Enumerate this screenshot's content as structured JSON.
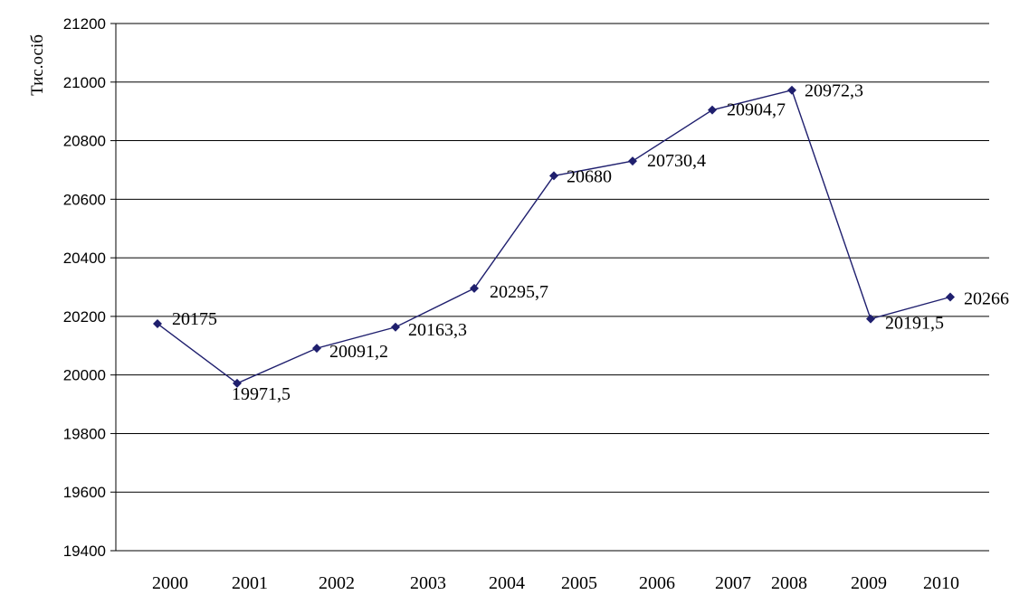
{
  "chart_data": {
    "type": "line",
    "title": "",
    "xlabel": "",
    "ylabel": "Тис.осіб",
    "categories": [
      "2000",
      "2001",
      "2002",
      "2003",
      "2004",
      "2005",
      "2006",
      "2007",
      "2008",
      "2009",
      "2010"
    ],
    "series": [
      {
        "values": [
          20175,
          19971.5,
          20091.2,
          20163.3,
          20295.7,
          20680,
          20730.4,
          20904.7,
          20972.3,
          20191.5,
          20266
        ],
        "labels": [
          "20175",
          "19971,5",
          "20091,2",
          "20163,3",
          "20295,7",
          "20680",
          "20730,4",
          "20904,7",
          "20972,3",
          "20191,5",
          "20266"
        ]
      }
    ],
    "ylim": [
      19400,
      21200
    ],
    "yticks": [
      "19400",
      "19600",
      "19800",
      "20000",
      "20200",
      "20400",
      "20600",
      "20800",
      "21000",
      "21200"
    ],
    "grid": true,
    "colors": {
      "line": "#1f1f6e",
      "marker": "#1f1f6e",
      "grid": "#000000"
    }
  }
}
